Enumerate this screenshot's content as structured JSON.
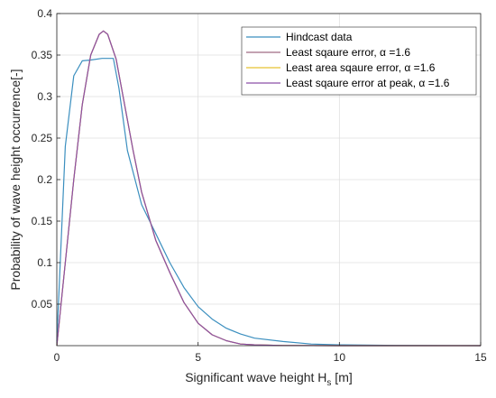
{
  "chart_data": {
    "type": "line",
    "xlabel": "Significant wave height H",
    "xlabel_sub": "s",
    "xlabel_unit": " [m]",
    "ylabel": "Probability of wave height occurrence[-]",
    "xlim": [
      0,
      15
    ],
    "ylim": [
      0,
      0.4
    ],
    "xticks": [
      "0",
      "5",
      "10",
      "15"
    ],
    "yticks": [
      "0.05",
      "0.1",
      "0.15",
      "0.2",
      "0.25",
      "0.3",
      "0.35",
      "0.4"
    ],
    "grid": true,
    "legend_position": "top-right",
    "series": [
      {
        "name": "Hindcast data",
        "color": "#3b8fbf",
        "x": [
          0,
          0.3,
          0.6,
          0.9,
          1.2,
          1.6,
          2.0,
          2.2,
          2.5,
          3.0,
          3.5,
          4.0,
          4.5,
          5.0,
          5.5,
          6.0,
          6.5,
          7.0,
          8.0,
          9.0,
          10.0,
          12.0,
          15.0
        ],
        "y": [
          0.005,
          0.24,
          0.325,
          0.343,
          0.344,
          0.346,
          0.346,
          0.31,
          0.235,
          0.17,
          0.135,
          0.1,
          0.07,
          0.047,
          0.032,
          0.021,
          0.014,
          0.009,
          0.005,
          0.002,
          0.001,
          0.0003,
          0
        ]
      },
      {
        "name": "Least sqaure error, α =1.6",
        "color": "#a16a84",
        "x": [
          0,
          0.3,
          0.6,
          0.9,
          1.2,
          1.5,
          1.65,
          1.8,
          2.1,
          2.4,
          2.7,
          3.0,
          3.5,
          4.0,
          4.5,
          5.0,
          5.5,
          6.0,
          6.5,
          7.0,
          8.0,
          10.0,
          15.0
        ],
        "y": [
          0,
          0.1,
          0.2,
          0.29,
          0.35,
          0.375,
          0.379,
          0.375,
          0.345,
          0.29,
          0.235,
          0.185,
          0.127,
          0.088,
          0.052,
          0.027,
          0.013,
          0.006,
          0.002,
          0.001,
          0.0002,
          0,
          0
        ]
      },
      {
        "name": "Least area sqaure error, α =1.6",
        "color": "#e8c230",
        "x": [
          0,
          0.3,
          0.6,
          0.9,
          1.2,
          1.5,
          1.65,
          1.8,
          2.1,
          2.4,
          2.7,
          3.0,
          3.5,
          4.0,
          4.5,
          5.0,
          5.5,
          6.0,
          6.5,
          7.0,
          8.0,
          10.0,
          15.0
        ],
        "y": [
          0,
          0.1,
          0.2,
          0.29,
          0.35,
          0.375,
          0.379,
          0.375,
          0.345,
          0.29,
          0.235,
          0.185,
          0.127,
          0.088,
          0.052,
          0.027,
          0.013,
          0.006,
          0.002,
          0.001,
          0.0002,
          0,
          0
        ]
      },
      {
        "name": "Least sqaure error at peak, α =1.6",
        "color": "#8c4fa8",
        "x": [
          0,
          0.3,
          0.6,
          0.9,
          1.2,
          1.5,
          1.65,
          1.8,
          2.1,
          2.4,
          2.7,
          3.0,
          3.5,
          4.0,
          4.5,
          5.0,
          5.5,
          6.0,
          6.5,
          7.0,
          8.0,
          10.0,
          15.0
        ],
        "y": [
          0,
          0.1,
          0.2,
          0.29,
          0.35,
          0.375,
          0.379,
          0.375,
          0.345,
          0.29,
          0.235,
          0.185,
          0.127,
          0.088,
          0.052,
          0.027,
          0.013,
          0.006,
          0.002,
          0.001,
          0.0002,
          0,
          0
        ]
      }
    ]
  }
}
